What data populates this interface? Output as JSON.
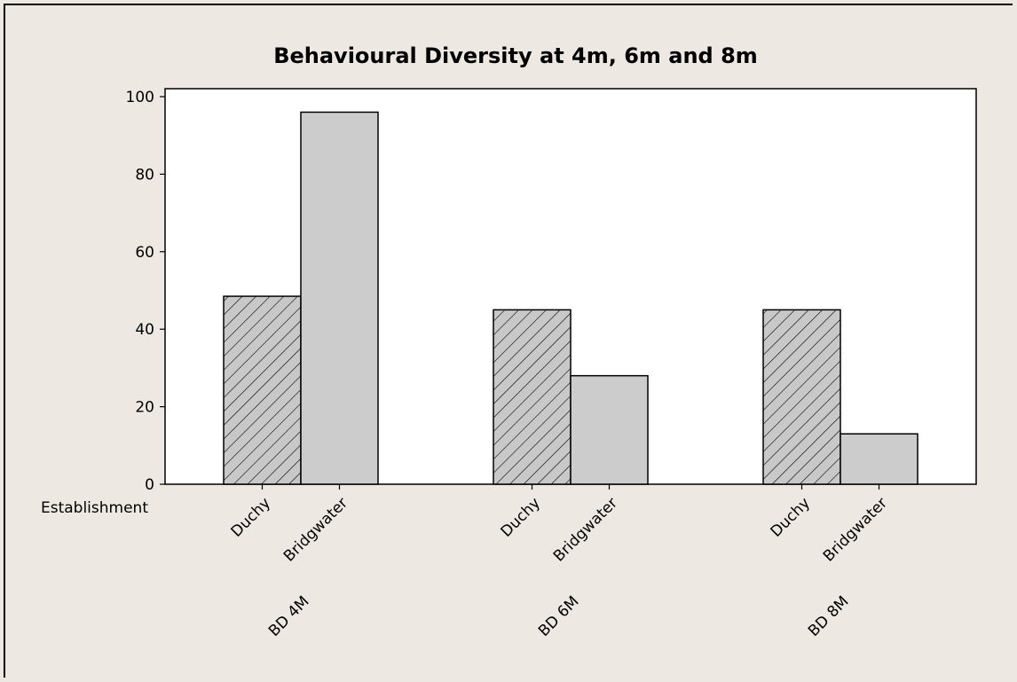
{
  "chart_data": {
    "type": "bar",
    "title": "Behavioural Diversity at 4m, 6m and 8m",
    "xlabel": "",
    "ylabel": "",
    "ylim": [
      0,
      100
    ],
    "yticks": [
      0,
      20,
      40,
      60,
      80,
      100
    ],
    "grid": false,
    "legend": "none",
    "inner_axis_label": "Establishment",
    "groups": [
      "BD 4M",
      "BD 6M",
      "BD 8M"
    ],
    "categories": [
      "Duchy",
      "Bridgwater"
    ],
    "bars": [
      {
        "group": "BD 4M",
        "category": "Duchy",
        "value": 48.5
      },
      {
        "group": "BD 4M",
        "category": "Bridgwater",
        "value": 96
      },
      {
        "group": "BD 6M",
        "category": "Duchy",
        "value": 45
      },
      {
        "group": "BD 6M",
        "category": "Bridgwater",
        "value": 28
      },
      {
        "group": "BD 8M",
        "category": "Duchy",
        "value": 45
      },
      {
        "group": "BD 8M",
        "category": "Bridgwater",
        "value": 13
      }
    ],
    "styles": {
      "Duchy": {
        "fill": "#c8c8c8",
        "pattern": "diagonal-hatch"
      },
      "Bridgwater": {
        "fill": "#cccccc",
        "pattern": "solid"
      }
    },
    "colors": {
      "background": "#ede8e2",
      "plot_area": "#ffffff",
      "stroke": "#000000"
    }
  }
}
